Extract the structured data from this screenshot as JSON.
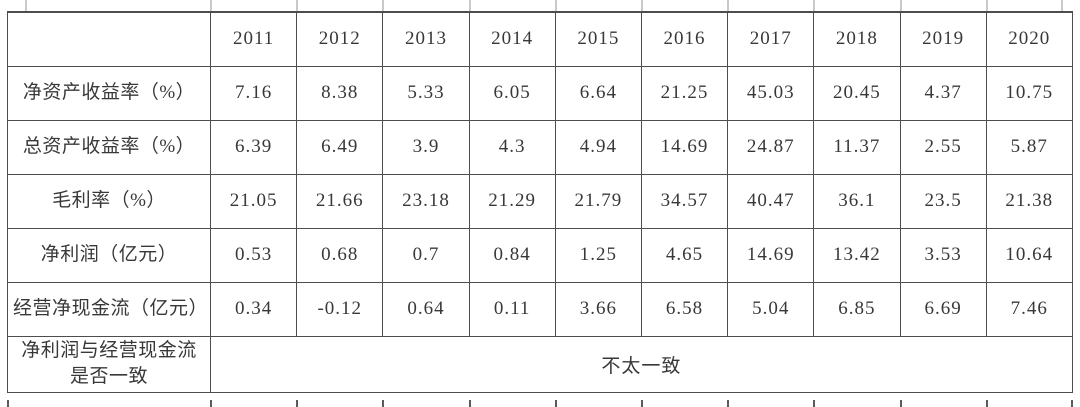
{
  "table": {
    "corner_label": "",
    "year_headers": [
      "2011",
      "2012",
      "2013",
      "2014",
      "2015",
      "2016",
      "2017",
      "2018",
      "2019",
      "2020"
    ],
    "metric_rows": [
      {
        "label": "净资产收益率（%）",
        "values": [
          "7.16",
          "8.38",
          "5.33",
          "6.05",
          "6.64",
          "21.25",
          "45.03",
          "20.45",
          "4.37",
          "10.75"
        ]
      },
      {
        "label": "总资产收益率（%）",
        "values": [
          "6.39",
          "6.49",
          "3.9",
          "4.3",
          "4.94",
          "14.69",
          "24.87",
          "11.37",
          "2.55",
          "5.87"
        ]
      },
      {
        "label": "毛利率（%）",
        "values": [
          "21.05",
          "21.66",
          "23.18",
          "21.29",
          "21.79",
          "34.57",
          "40.47",
          "36.1",
          "23.5",
          "21.38"
        ]
      },
      {
        "label": "净利润（亿元）",
        "values": [
          "0.53",
          "0.68",
          "0.7",
          "0.84",
          "1.25",
          "4.65",
          "14.69",
          "13.42",
          "3.53",
          "10.64"
        ]
      },
      {
        "label": "经营净现金流（亿元）",
        "values": [
          "0.34",
          "-0.12",
          "0.64",
          "0.11",
          "3.66",
          "6.58",
          "5.04",
          "6.85",
          "6.69",
          "7.46"
        ]
      }
    ],
    "consistency_row": {
      "label": "净利润与经营现金流是否一致",
      "value": "不太一致"
    }
  },
  "colors": {
    "border": "#4d4d4d",
    "text": "#383838",
    "faint_line": "#c9c9c9",
    "background": "#ffffff"
  }
}
